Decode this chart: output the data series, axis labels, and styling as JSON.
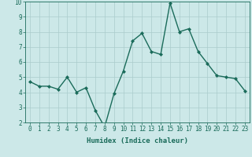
{
  "x": [
    0,
    1,
    2,
    3,
    4,
    5,
    6,
    7,
    8,
    9,
    10,
    11,
    12,
    13,
    14,
    15,
    16,
    17,
    18,
    19,
    20,
    21,
    22,
    23
  ],
  "y": [
    4.7,
    4.4,
    4.4,
    4.2,
    5.0,
    4.0,
    4.3,
    2.8,
    1.7,
    3.9,
    5.4,
    7.4,
    7.9,
    6.7,
    6.5,
    9.9,
    8.0,
    8.2,
    6.7,
    5.9,
    5.1,
    5.0,
    4.9,
    4.1
  ],
  "line_color": "#1a6b5a",
  "marker": "D",
  "markersize": 2.0,
  "linewidth": 1.0,
  "bg_color": "#cce8e8",
  "grid_color": "#aacccc",
  "xlabel": "Humidex (Indice chaleur)",
  "xlim": [
    -0.5,
    23.5
  ],
  "ylim": [
    2,
    10
  ],
  "yticks": [
    2,
    3,
    4,
    5,
    6,
    7,
    8,
    9,
    10
  ],
  "xticks": [
    0,
    1,
    2,
    3,
    4,
    5,
    6,
    7,
    8,
    9,
    10,
    11,
    12,
    13,
    14,
    15,
    16,
    17,
    18,
    19,
    20,
    21,
    22,
    23
  ],
  "xlabel_fontsize": 6.5,
  "tick_fontsize": 5.5,
  "tick_color": "#1a6b5a",
  "axis_color": "#1a6b5a"
}
